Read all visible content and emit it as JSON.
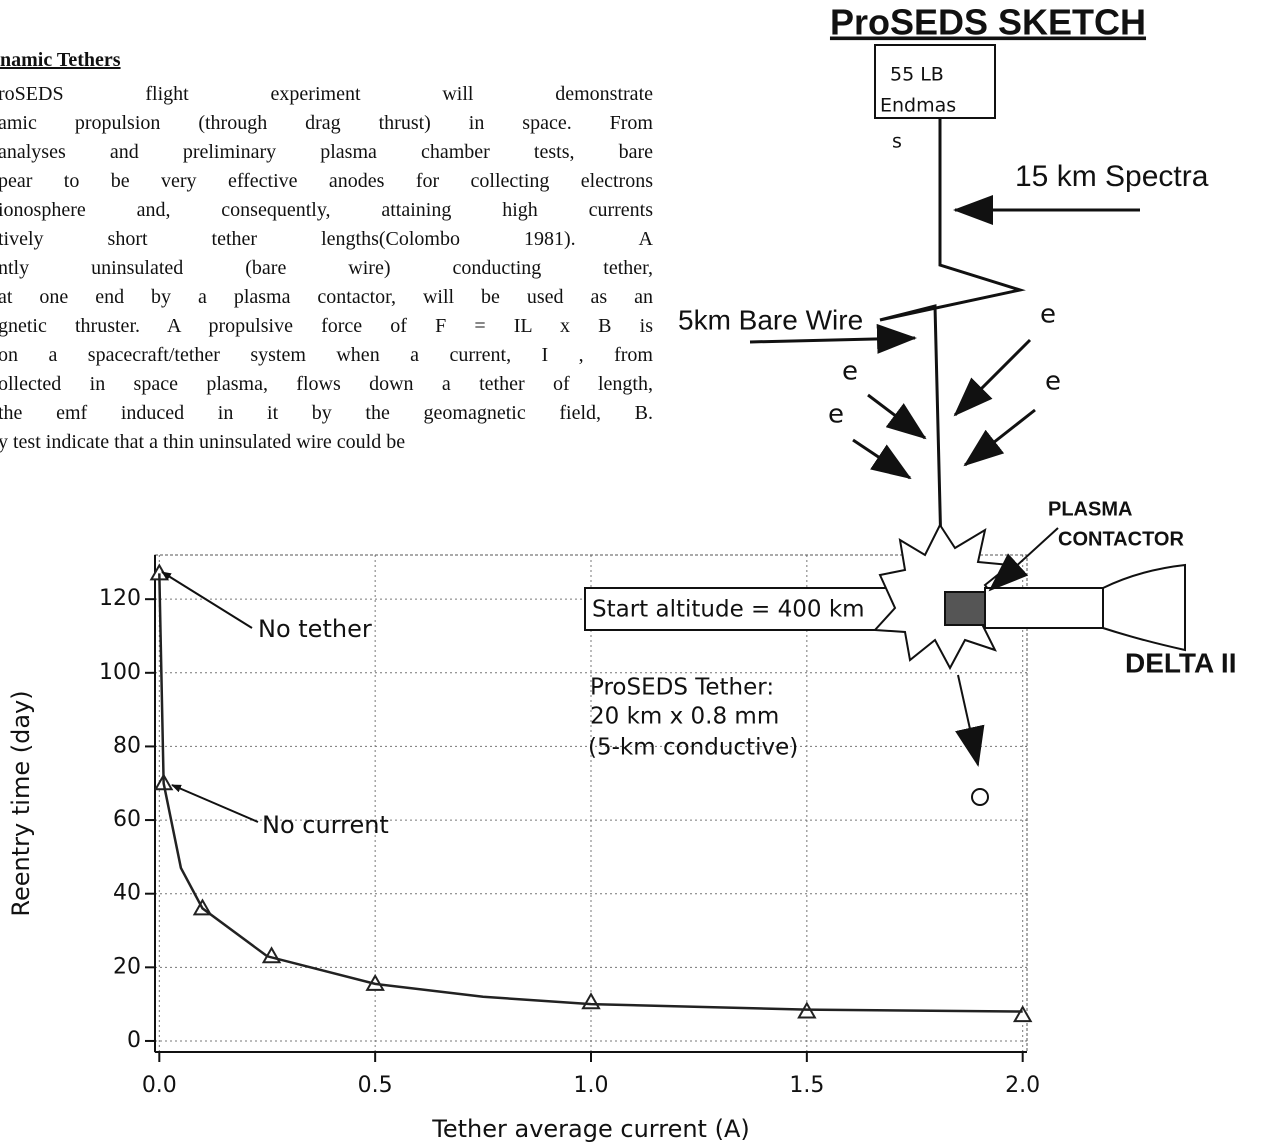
{
  "heading": "namic Tethers",
  "paragraph": [
    "roSEDS flight experiment will demonstrate",
    "amic propulsion (through drag thrust) in space. From",
    "analyses and preliminary plasma chamber tests, bare",
    "pear to be very effective anodes for collecting electrons",
    "ionosphere and, consequently, attaining high currents",
    "tively short tether lengths(Colombo 1981). A",
    "ntly uninsulated (bare wire) conducting tether,",
    "at one end by a plasma contactor, will be used as an",
    "gnetic thruster. A propulsive force of F = IL x B is",
    "on a spacecraft/tether system when a current, I , from",
    "ollected in space plasma, flows down a tether of length,",
    "the emf induced in it by the geomagnetic field, B.",
    "y test indicate that a thin uninsulated wire could be"
  ],
  "sketch": {
    "title": "ProSEDS SKETCH",
    "endmass": [
      "55 LB",
      "Endmas",
      "s"
    ],
    "spectra": "15 km Spectra",
    "bare_wire": "5km Bare Wire",
    "electrons": [
      "e",
      "e",
      "e",
      "e"
    ],
    "contactor": [
      "PLASMA",
      "CONTACTOR"
    ],
    "vehicle": "DELTA II"
  },
  "chart_data": {
    "type": "scatter",
    "x_label": "Tether average current (A)",
    "y_label": "Reentry time (day)",
    "xlim": [
      -0.01,
      2.01
    ],
    "ylim": [
      -3,
      132
    ],
    "xticks": [
      {
        "value": 0,
        "label": "0.0"
      },
      0.5,
      {
        "value": 1,
        "label": "1.0"
      },
      1.5,
      {
        "value": 2,
        "label": "2.0"
      }
    ],
    "yticks": [
      0,
      20,
      40,
      60,
      80,
      100,
      120
    ],
    "grid": true,
    "series": [
      {
        "color": "#222222",
        "marker": "triangle",
        "x": [
          0,
          0.01,
          0.1,
          0.26,
          0.5,
          1.0,
          1.5,
          2.0
        ],
        "values": [
          127,
          70,
          36,
          23,
          15.5,
          10.5,
          8,
          7
        ]
      },
      {
        "color": "#222222",
        "style": "line",
        "x": [
          0,
          0.01,
          0.05,
          0.1,
          0.25,
          0.5,
          0.75,
          1.0,
          1.5,
          2.0
        ],
        "values": [
          127,
          70,
          47,
          36,
          23,
          15.5,
          12,
          10,
          8.5,
          8
        ]
      }
    ],
    "annotations": [
      "No tether",
      "No current",
      "Start altitude = 400 km",
      "ProSEDS Tether:",
      "20 km x 0.8 mm",
      "(5-km conductive)"
    ]
  }
}
